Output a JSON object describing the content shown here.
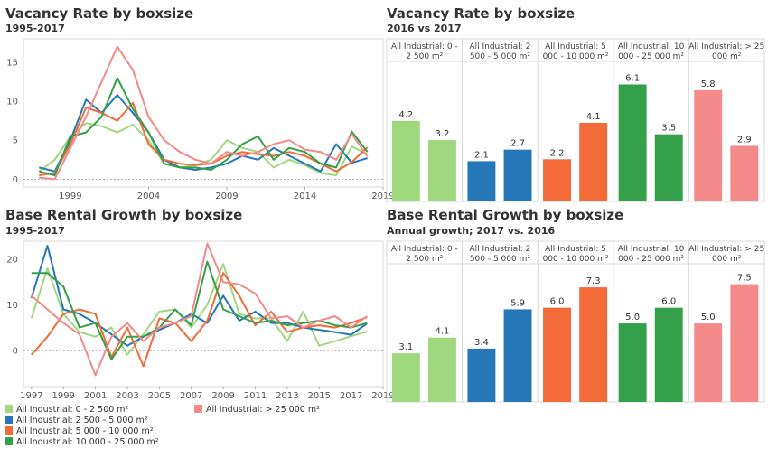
{
  "panels": {
    "tl": {
      "title": "Vacancy Rate by boxsize",
      "subtitle": "1995-2017"
    },
    "tr": {
      "title": "Vacancy Rate by boxsize",
      "subtitle": "2016 vs 2017"
    },
    "bl": {
      "title": "Base Rental Growth by boxsize",
      "subtitle": "1995-2017"
    },
    "br": {
      "title": "Base Rental Growth by boxsize",
      "subtitle": "Annual growth; 2017 vs. 2016"
    }
  },
  "legend": [
    {
      "label": "All Industrial: 0 - 2 500 m²",
      "color": "#9fd87e"
    },
    {
      "label": "All Industrial: 2 500 - 5 000 m²",
      "color": "#2677b8"
    },
    {
      "label": "All Industrial: 5 000 - 10 000 m²",
      "color": "#f26b38"
    },
    {
      "label": "All Industrial: 10 000 - 25 000 m²",
      "color": "#34a049"
    },
    {
      "label": "All Industrial: > 25 000 m²",
      "color": "#f58a8a"
    }
  ],
  "chart_data": [
    {
      "id": "vacancy-line",
      "type": "line",
      "title": "Vacancy Rate by boxsize",
      "subtitle": "1995-2017",
      "xlim": [
        1996,
        2019
      ],
      "ylim": [
        -1,
        18
      ],
      "x_ticks": [
        "1999",
        "2004",
        "2009",
        "2014",
        "2019"
      ],
      "y_ticks": [
        "0",
        "5",
        "10",
        "15"
      ],
      "x": [
        1997,
        1998,
        1999,
        2000,
        2001,
        2002,
        2003,
        2004,
        2005,
        2006,
        2007,
        2008,
        2009,
        2010,
        2011,
        2012,
        2013,
        2014,
        2015,
        2016,
        2017,
        2018
      ],
      "series": [
        {
          "name": "All Industrial: 0 - 2 500 m²",
          "color": "#9fd87e",
          "values": [
            1.0,
            2.5,
            5.5,
            7.2,
            6.8,
            6.0,
            7.0,
            5.0,
            2.0,
            1.5,
            1.8,
            2.5,
            5.0,
            4.0,
            3.5,
            1.5,
            2.5,
            1.8,
            0.8,
            0.5,
            4.2,
            3.2
          ]
        },
        {
          "name": "All Industrial: 2 500 - 5 000 m²",
          "color": "#2677b8",
          "values": [
            1.5,
            1.0,
            5.0,
            10.2,
            8.5,
            10.8,
            8.5,
            6.0,
            2.5,
            1.5,
            1.2,
            1.5,
            2.0,
            3.0,
            2.5,
            4.0,
            3.0,
            2.0,
            1.0,
            4.5,
            2.1,
            2.7
          ]
        },
        {
          "name": "All Industrial: 5 000 - 10 000 m²",
          "color": "#f26b38",
          "values": [
            0.5,
            0.8,
            4.5,
            9.2,
            8.5,
            7.5,
            9.8,
            4.5,
            2.5,
            2.0,
            1.8,
            2.0,
            3.0,
            3.5,
            3.2,
            3.0,
            3.5,
            3.0,
            2.0,
            1.0,
            2.2,
            4.1
          ]
        },
        {
          "name": "All Industrial: 10 000 - 25 000 m²",
          "color": "#34a049",
          "values": [
            1.0,
            0.5,
            5.5,
            6.0,
            8.0,
            13.0,
            9.0,
            6.0,
            2.0,
            1.5,
            1.5,
            1.2,
            2.5,
            4.5,
            5.5,
            2.5,
            4.0,
            3.5,
            2.0,
            1.5,
            6.1,
            3.5
          ]
        },
        {
          "name": "All Industrial: > 25 000 m²",
          "color": "#f58a8a",
          "values": [
            0.2,
            0.0,
            4.0,
            8.0,
            12.5,
            17.0,
            14.0,
            8.0,
            5.0,
            3.5,
            2.5,
            2.0,
            3.5,
            3.0,
            3.5,
            4.5,
            5.0,
            3.8,
            3.5,
            2.5,
            5.8,
            2.9
          ]
        }
      ]
    },
    {
      "id": "vacancy-bar",
      "type": "bar",
      "title": "Vacancy Rate by boxsize",
      "subtitle": "2016 vs 2017",
      "ylim": [
        0,
        7.3
      ],
      "groups": [
        {
          "header": "All Industrial: 0 - 2 500 m²",
          "color": "#9fd87e",
          "values": [
            4.2,
            3.2
          ],
          "labels": [
            "4.2",
            "3.2"
          ]
        },
        {
          "header": "All Industrial: 2 500 - 5 000 m²",
          "color": "#2677b8",
          "values": [
            2.1,
            2.7
          ],
          "labels": [
            "2.1",
            "2.7"
          ]
        },
        {
          "header": "All Industrial: 5 000 - 10 000 m²",
          "color": "#f26b38",
          "values": [
            2.2,
            4.1
          ],
          "labels": [
            "2.2",
            "4.1"
          ]
        },
        {
          "header": "All Industrial: 10 000 - 25 000 m²",
          "color": "#34a049",
          "values": [
            6.1,
            3.5
          ],
          "labels": [
            "6.1",
            "3.5"
          ]
        },
        {
          "header": "All Industrial: > 25 000 m²",
          "color": "#f58a8a",
          "values": [
            5.8,
            2.9
          ],
          "labels": [
            "5.8",
            "2.9"
          ]
        }
      ]
    },
    {
      "id": "rental-line",
      "type": "line",
      "title": "Base Rental Growth by boxsize",
      "subtitle": "1995-2017",
      "xlim": [
        1996.5,
        2019
      ],
      "ylim": [
        -8,
        24
      ],
      "x_ticks": [
        "1997",
        "1999",
        "2001",
        "2003",
        "2005",
        "2007",
        "2009",
        "2011",
        "2013",
        "2015",
        "2017",
        "2019"
      ],
      "y_ticks": [
        "0",
        "10",
        "20"
      ],
      "x": [
        1997,
        1998,
        1999,
        2000,
        2001,
        2002,
        2003,
        2004,
        2005,
        2006,
        2007,
        2008,
        2009,
        2010,
        2011,
        2012,
        2013,
        2014,
        2015,
        2016,
        2017,
        2018
      ],
      "series": [
        {
          "name": "All Industrial: 0 - 2 500 m²",
          "color": "#9fd87e",
          "values": [
            7.0,
            18.0,
            8.0,
            4.0,
            3.0,
            5.0,
            -1.0,
            3.5,
            8.5,
            9.0,
            5.0,
            10.0,
            19.0,
            8.0,
            7.0,
            7.0,
            2.0,
            8.5,
            1.0,
            2.0,
            3.1,
            4.1
          ]
        },
        {
          "name": "All Industrial: 2 500 - 5 000 m²",
          "color": "#2677b8",
          "values": [
            11.5,
            23.0,
            9.0,
            8.0,
            6.0,
            3.5,
            1.0,
            3.0,
            4.5,
            6.0,
            8.0,
            6.0,
            12.0,
            6.5,
            8.5,
            6.0,
            6.0,
            5.0,
            4.5,
            4.0,
            3.4,
            5.9
          ]
        },
        {
          "name": "All Industrial: 5 000 - 10 000 m²",
          "color": "#f26b38",
          "values": [
            -1.0,
            3.0,
            8.0,
            9.0,
            8.0,
            -1.5,
            5.0,
            -3.5,
            7.0,
            6.0,
            2.0,
            6.5,
            17.0,
            12.0,
            5.5,
            8.5,
            4.0,
            5.0,
            5.5,
            5.0,
            6.0,
            7.3
          ]
        },
        {
          "name": "All Industrial: 10 000 - 25 000 m²",
          "color": "#34a049",
          "values": [
            17.0,
            17.0,
            14.0,
            5.0,
            6.0,
            -2.0,
            3.0,
            3.0,
            5.0,
            9.0,
            5.5,
            19.5,
            9.0,
            7.5,
            6.0,
            6.5,
            5.5,
            6.0,
            6.5,
            5.5,
            5.0,
            6.0
          ]
        },
        {
          "name": "All Industrial: > 25 000 m²",
          "color": "#f58a8a",
          "values": [
            12.0,
            9.0,
            6.0,
            3.5,
            -5.5,
            3.0,
            6.0,
            2.0,
            5.0,
            6.0,
            7.5,
            23.5,
            15.0,
            14.5,
            12.5,
            7.0,
            7.5,
            5.0,
            6.5,
            7.5,
            5.0,
            7.5
          ]
        }
      ]
    },
    {
      "id": "rental-bar",
      "type": "bar",
      "title": "Base Rental Growth by boxsize",
      "subtitle": "Annual growth; 2017 vs. 2016",
      "ylim": [
        0,
        8.8
      ],
      "groups": [
        {
          "header": "All Industrial: 0 - 2 500 m²",
          "color": "#9fd87e",
          "values": [
            3.1,
            4.1
          ],
          "labels": [
            "3.1",
            "4.1"
          ]
        },
        {
          "header": "All Industrial: 2 500 - 5 000 m²",
          "color": "#2677b8",
          "values": [
            3.4,
            5.9
          ],
          "labels": [
            "3.4",
            "5.9"
          ]
        },
        {
          "header": "All Industrial: 5 000 - 10 000 m²",
          "color": "#f26b38",
          "values": [
            6.0,
            7.3
          ],
          "labels": [
            "6.0",
            "7.3"
          ]
        },
        {
          "header": "All Industrial: 10 000 - 25 000 m²",
          "color": "#34a049",
          "values": [
            5.0,
            6.0
          ],
          "labels": [
            "5.0",
            "6.0"
          ]
        },
        {
          "header": "All Industrial: > 25 000 m²",
          "color": "#f58a8a",
          "values": [
            5.0,
            7.5
          ],
          "labels": [
            "5.0",
            "7.5"
          ]
        }
      ]
    }
  ]
}
